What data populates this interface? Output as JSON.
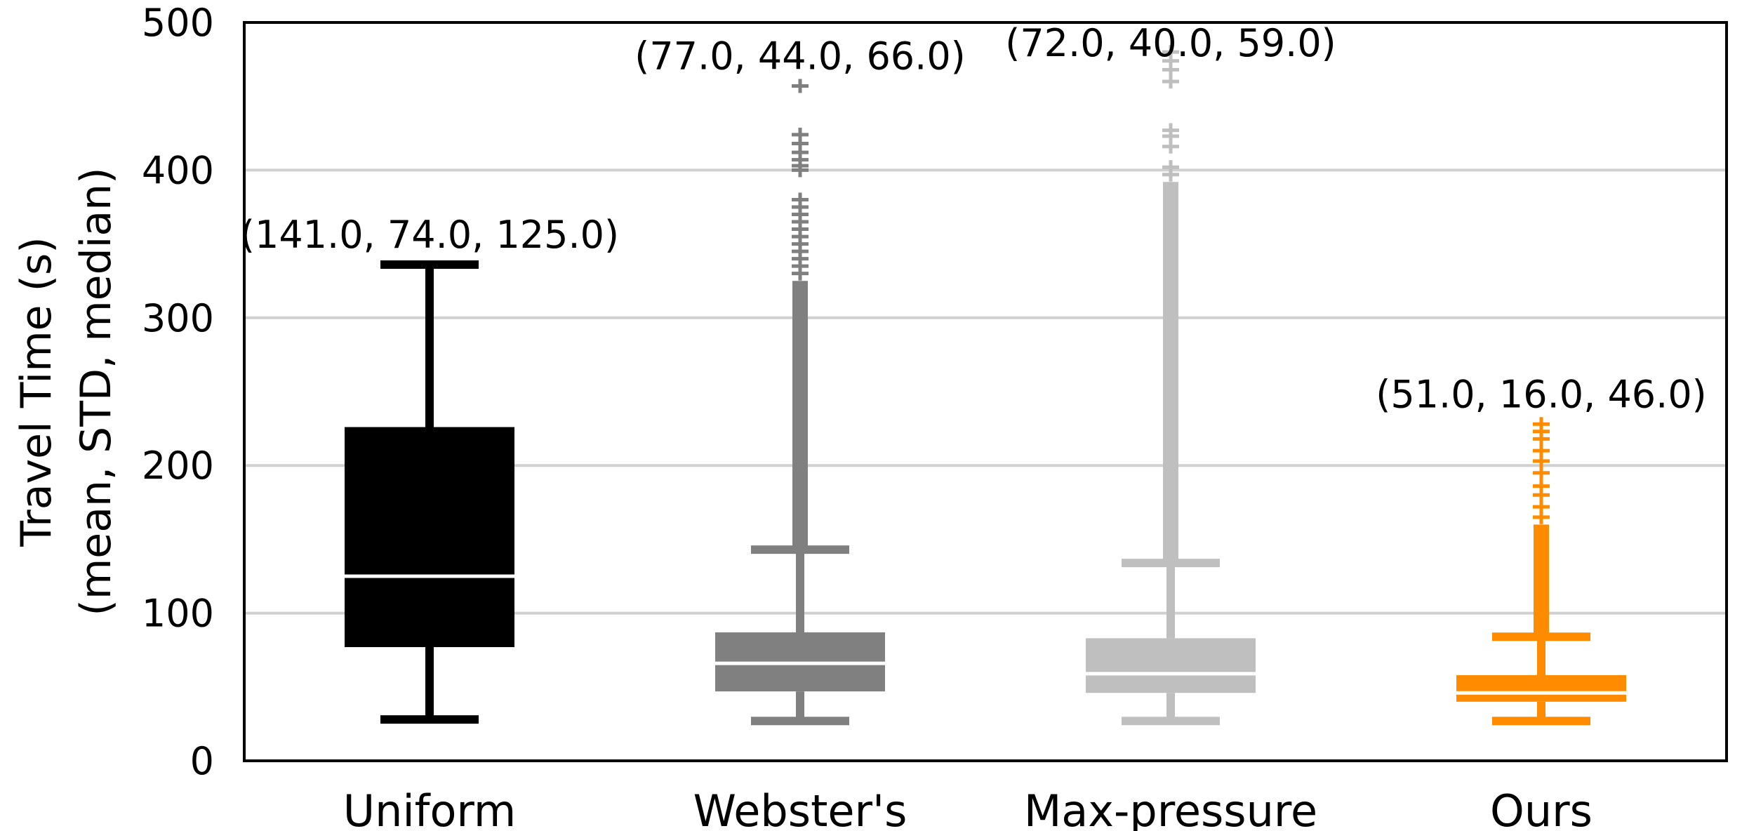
{
  "chart_data": {
    "type": "boxplot",
    "ylabel_lines": [
      "Travel Time (s)",
      "(mean, STD, median)"
    ],
    "ylim": [
      0,
      500
    ],
    "yticks": [
      0,
      100,
      200,
      300,
      400,
      500
    ],
    "ytick_labels": [
      "0",
      "100",
      "200",
      "300",
      "400",
      "500"
    ],
    "grid": "horizontal",
    "categories": [
      "Uniform",
      "Webster's",
      "Max-pressure",
      "Ours"
    ],
    "boxes": [
      {
        "category": "Uniform",
        "color": "#000000",
        "median_color": "#ffffff",
        "whisker_low": 28,
        "q1": 77,
        "median": 125,
        "q3": 226,
        "whisker_high": 336,
        "fliers": [],
        "annotation": "(141.0, 74.0, 125.0)"
      },
      {
        "category": "Webster's",
        "color": "#808080",
        "median_color": "#ffffff",
        "whisker_low": 27,
        "q1": 47,
        "median": 66,
        "q3": 87,
        "whisker_high": 143,
        "flier_range": [
          143,
          325
        ],
        "fliers": [
          330,
          335,
          340,
          345,
          350,
          355,
          360,
          365,
          370,
          375,
          380,
          400,
          403,
          407,
          412,
          418,
          424,
          457
        ],
        "annotation": "(77.0, 44.0, 66.0)"
      },
      {
        "category": "Max-pressure",
        "color": "#bfbfbf",
        "median_color": "#ffffff",
        "whisker_low": 27,
        "q1": 46,
        "median": 59,
        "q3": 83,
        "whisker_high": 134,
        "flier_range": [
          134,
          392
        ],
        "fliers": [
          397,
          402,
          416,
          423,
          427,
          460,
          468,
          474,
          480
        ],
        "annotation": "(72.0, 40.0, 59.0)"
      },
      {
        "category": "Ours",
        "color": "#ff8c00",
        "median_color": "#ffffff",
        "whisker_low": 27,
        "q1": 40,
        "median": 46,
        "q3": 58,
        "whisker_high": 84,
        "flier_range": [
          84,
          160
        ],
        "fliers": [
          165,
          172,
          180,
          186,
          195,
          203,
          210,
          218,
          223,
          228
        ],
        "annotation": "(51.0, 16.0, 46.0)"
      }
    ]
  }
}
